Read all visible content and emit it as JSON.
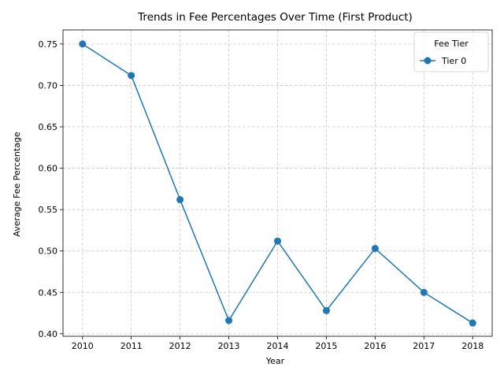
{
  "chart_data": {
    "type": "line",
    "title": "Trends in Fee Percentages Over Time (First Product)",
    "xlabel": "Year",
    "ylabel": "Average Fee Percentage",
    "x": [
      2010,
      2011,
      2012,
      2013,
      2014,
      2015,
      2016,
      2017,
      2018
    ],
    "series": [
      {
        "name": "Tier 0",
        "color": "#1f77b4",
        "marker": "circle",
        "values": [
          0.75,
          0.712,
          0.562,
          0.416,
          0.512,
          0.428,
          0.503,
          0.45,
          0.413
        ]
      }
    ],
    "xlim": [
      2009.6,
      2018.4
    ],
    "ylim": [
      0.397,
      0.767
    ],
    "xticks": [
      2010,
      2011,
      2012,
      2013,
      2014,
      2015,
      2016,
      2017,
      2018
    ],
    "xtick_labels": [
      "2010",
      "2011",
      "2012",
      "2013",
      "2014",
      "2015",
      "2016",
      "2017",
      "2018"
    ],
    "yticks": [
      0.4,
      0.45,
      0.5,
      0.55,
      0.6,
      0.65,
      0.7,
      0.75
    ],
    "ytick_labels": [
      "0.40",
      "0.45",
      "0.50",
      "0.55",
      "0.60",
      "0.65",
      "0.70",
      "0.75"
    ],
    "grid": true,
    "grid_style": "dashed",
    "legend": {
      "title": "Fee Tier",
      "placement": "top-right"
    }
  }
}
